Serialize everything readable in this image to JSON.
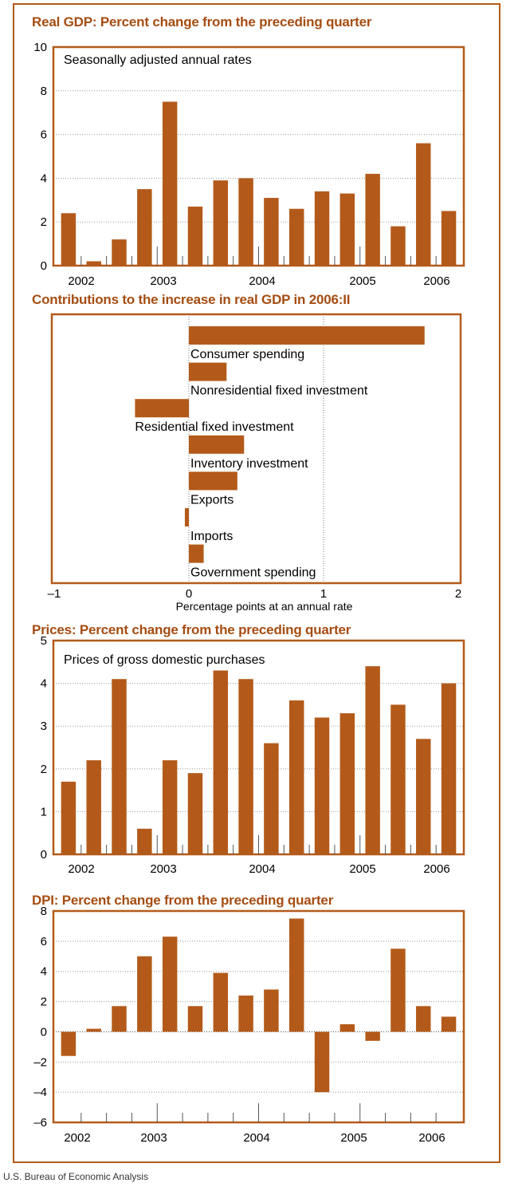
{
  "source": "U.S. Bureau of Economic Analysis",
  "colors": {
    "bar": "#b35a1a",
    "title": "#a54d12",
    "frame": "#b35a1a",
    "grid": "#999999"
  },
  "chart_data": [
    {
      "id": "gdp",
      "type": "bar",
      "title": "Real GDP: Percent change from the preceding quarter",
      "subtitle": "Seasonally adjusted annual rates",
      "xlabel": "",
      "ylabel": "",
      "ylim": [
        0,
        10
      ],
      "yticks": [
        "0",
        "2",
        "4",
        "6",
        "8",
        "10"
      ],
      "year_labels": [
        "2002",
        "2003",
        "2004",
        "2005",
        "2006"
      ],
      "values": [
        2.4,
        0.2,
        1.2,
        3.5,
        7.5,
        2.7,
        3.9,
        4.0,
        3.1,
        2.6,
        3.4,
        3.3,
        4.2,
        1.8,
        5.6,
        2.5
      ],
      "grid": true
    },
    {
      "id": "contrib",
      "type": "bar",
      "orientation": "horizontal",
      "title": "Contributions to the increase in real GDP in 2006:II",
      "xlabel": "Percentage points at an annual rate",
      "xlim": [
        -1,
        2
      ],
      "xticks": [
        "–1",
        "0",
        "1",
        "2"
      ],
      "categories": [
        "Consumer spending",
        "Nonresidential fixed investment",
        "Residential fixed investment",
        "Inventory investment",
        "Exports",
        "Imports",
        "Government spending"
      ],
      "values": [
        1.75,
        0.28,
        -0.4,
        0.41,
        0.36,
        -0.03,
        0.11
      ],
      "grid": true
    },
    {
      "id": "prices",
      "type": "bar",
      "title": "Prices: Percent change from the preceding quarter",
      "subtitle": "Prices of gross domestic purchases",
      "xlabel": "",
      "ylabel": "",
      "ylim": [
        0,
        5
      ],
      "yticks": [
        "0",
        "1",
        "2",
        "3",
        "4",
        "5"
      ],
      "year_labels": [
        "2002",
        "2003",
        "2004",
        "2005",
        "2006"
      ],
      "values": [
        1.7,
        2.2,
        4.1,
        0.6,
        2.2,
        1.9,
        4.3,
        4.1,
        2.6,
        3.6,
        3.2,
        3.3,
        4.4,
        3.5,
        2.7,
        4.0
      ],
      "grid": true
    },
    {
      "id": "dpi",
      "type": "bar",
      "title": "DPI: Percent change from the preceding quarter",
      "xlabel": "",
      "ylabel": "",
      "ylim": [
        -6,
        8
      ],
      "yticks": [
        "–6",
        "–4",
        "–2",
        "0",
        "2",
        "4",
        "6",
        "8"
      ],
      "year_labels": [
        "2002",
        "2003",
        "2004",
        "2005",
        "2006"
      ],
      "values": [
        -1.6,
        0.2,
        1.7,
        5.0,
        6.3,
        1.7,
        3.9,
        2.4,
        2.8,
        7.5,
        -4.0,
        0.5,
        -0.6,
        5.5,
        1.7,
        1.0
      ],
      "grid": true
    }
  ]
}
